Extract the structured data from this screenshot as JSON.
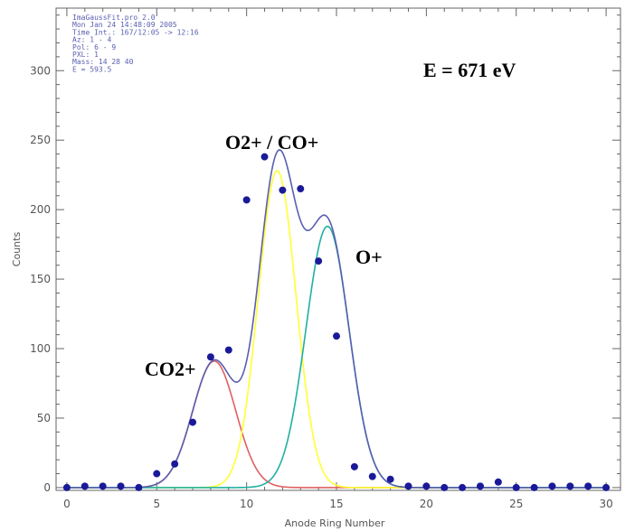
{
  "chart_data": {
    "type": "scatter",
    "xlabel": "Anode Ring Number",
    "ylabel": "Counts",
    "xlim": [
      -0.6,
      30.8
    ],
    "ylim": [
      -2,
      345
    ],
    "x_ticks": [
      0,
      5,
      10,
      15,
      20,
      25,
      30
    ],
    "y_ticks": [
      0,
      50,
      100,
      150,
      200,
      250,
      300
    ],
    "grid": false,
    "header_lines": [
      "ImaGaussFit.pro 2.0",
      "Mon Jan 24 14:48:09 2005",
      "Time Int.: 167/12:05 -> 12:16",
      "Az:   1 -   4",
      "Pol:  6 -   9",
      "PXL:  1",
      "Mass: 14 28 40",
      "E =   593.5"
    ],
    "annotations": {
      "energy": "E = 671 eV",
      "peak_co2": "CO2+",
      "peak_o2_co": "O2+ / CO+",
      "peak_o": "O+"
    },
    "points": {
      "x": [
        0,
        1,
        2,
        3,
        4,
        5,
        6,
        7,
        8,
        9,
        10,
        11,
        12,
        13,
        14,
        15,
        16,
        17,
        18,
        19,
        20,
        21,
        22,
        23,
        24,
        25,
        26,
        27,
        28,
        29,
        30
      ],
      "y": [
        0,
        1,
        1,
        1,
        0,
        10,
        17,
        47,
        94,
        99,
        207,
        238,
        214,
        215,
        163,
        109,
        15,
        8,
        6,
        1,
        1,
        0,
        0,
        1,
        4,
        0,
        0,
        1,
        1,
        1,
        0
      ],
      "color": "#1a1a99"
    },
    "series": [
      {
        "type": "gaussian",
        "color": "#e06060",
        "amplitude": 91,
        "center": 8.2,
        "sigma": 1.2
      },
      {
        "type": "gaussian",
        "color": "#ffff33",
        "amplitude": 228,
        "center": 11.7,
        "sigma": 1.05
      },
      {
        "type": "gaussian",
        "color": "#20b0a0",
        "amplitude": 188,
        "center": 14.5,
        "sigma": 1.2
      },
      {
        "type": "sum",
        "color": "#5a5fb0"
      }
    ]
  }
}
